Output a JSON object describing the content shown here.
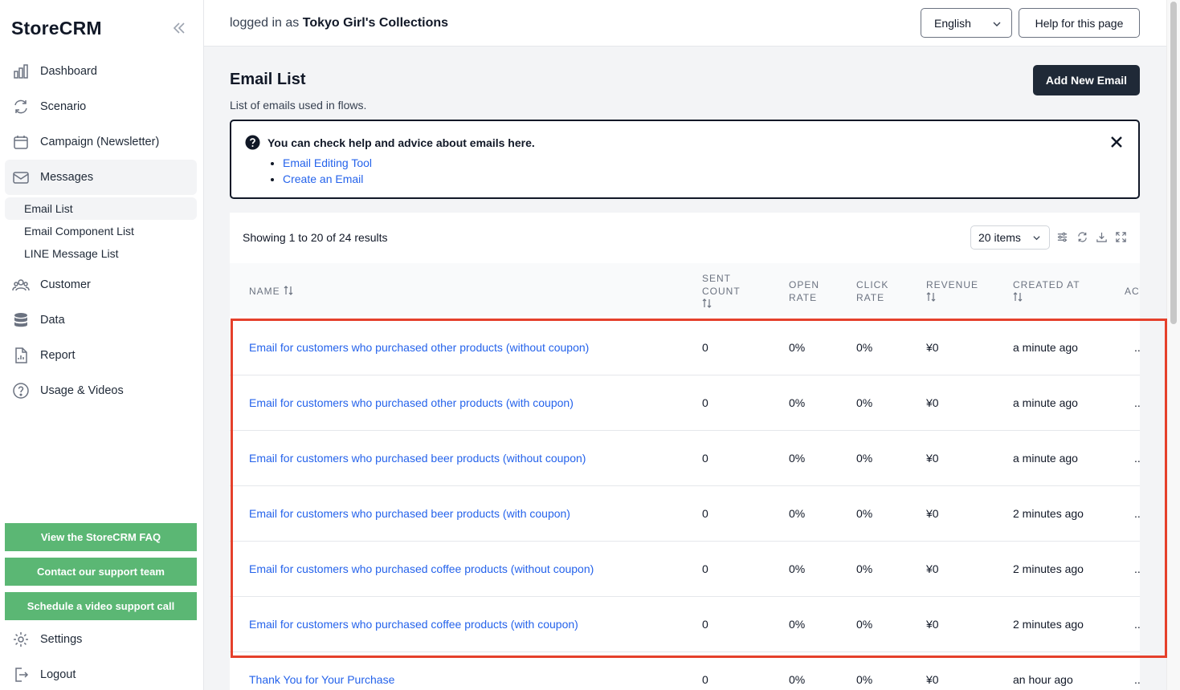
{
  "sidebar": {
    "logo": "StoreCRM",
    "items": [
      {
        "label": "Dashboard",
        "icon": "bar-chart-icon"
      },
      {
        "label": "Scenario",
        "icon": "refresh-icon"
      },
      {
        "label": "Campaign (Newsletter)",
        "icon": "calendar-icon"
      },
      {
        "label": "Messages",
        "icon": "mail-icon"
      },
      {
        "label": "Customer",
        "icon": "users-icon"
      },
      {
        "label": "Data",
        "icon": "database-icon"
      },
      {
        "label": "Report",
        "icon": "document-chart-icon"
      },
      {
        "label": "Usage & Videos",
        "icon": "question-circle-icon"
      }
    ],
    "sub_items": [
      "Email List",
      "Email Component List",
      "LINE Message List"
    ],
    "buttons": [
      "View the StoreCRM FAQ",
      "Contact our support team",
      "Schedule a video support call"
    ],
    "settings": "Settings",
    "logout": "Logout"
  },
  "header": {
    "logged_prefix": "logged in as",
    "store_name": "Tokyo Girl's Collections",
    "language": "English",
    "help": "Help for this page"
  },
  "main": {
    "title": "Email List",
    "subtitle": "List of emails used in flows.",
    "add_button": "Add New Email",
    "helpbox": {
      "title": "You can check help and advice about emails here.",
      "links": [
        "Email Editing Tool",
        "Create an Email"
      ]
    },
    "table": {
      "showing": "Showing 1 to 20 of 24 results",
      "per_page": "20 items",
      "headers": {
        "name": "NAME",
        "sent_1": "SENT",
        "sent_2": "COUNT",
        "open_1": "OPEN",
        "open_2": "RATE",
        "click_1": "CLICK",
        "click_2": "RATE",
        "revenue": "REVENUE",
        "created": "CREATED AT",
        "actions": "ACTIONS"
      },
      "rows": [
        {
          "name": "Email for customers who purchased other products (without coupon)",
          "sent": "0",
          "open": "0%",
          "click": "0%",
          "revenue": "¥0",
          "created": "a minute ago"
        },
        {
          "name": "Email for customers who purchased other products (with coupon)",
          "sent": "0",
          "open": "0%",
          "click": "0%",
          "revenue": "¥0",
          "created": "a minute ago"
        },
        {
          "name": "Email for customers who purchased beer products (without coupon)",
          "sent": "0",
          "open": "0%",
          "click": "0%",
          "revenue": "¥0",
          "created": "a minute ago"
        },
        {
          "name": "Email for customers who purchased beer products (with coupon)",
          "sent": "0",
          "open": "0%",
          "click": "0%",
          "revenue": "¥0",
          "created": "2 minutes ago"
        },
        {
          "name": "Email for customers who purchased coffee products (without coupon)",
          "sent": "0",
          "open": "0%",
          "click": "0%",
          "revenue": "¥0",
          "created": "2 minutes ago"
        },
        {
          "name": "Email for customers who purchased coffee products (with coupon)",
          "sent": "0",
          "open": "0%",
          "click": "0%",
          "revenue": "¥0",
          "created": "2 minutes ago"
        },
        {
          "name": "Thank You for Your Purchase",
          "sent": "0",
          "open": "0%",
          "click": "0%",
          "revenue": "¥0",
          "created": "an hour ago"
        }
      ],
      "action_text": "..."
    }
  },
  "colors": {
    "link": "#2563eb",
    "green": "#5bb774",
    "dark": "#1f2937",
    "highlight": "#e5402b"
  }
}
